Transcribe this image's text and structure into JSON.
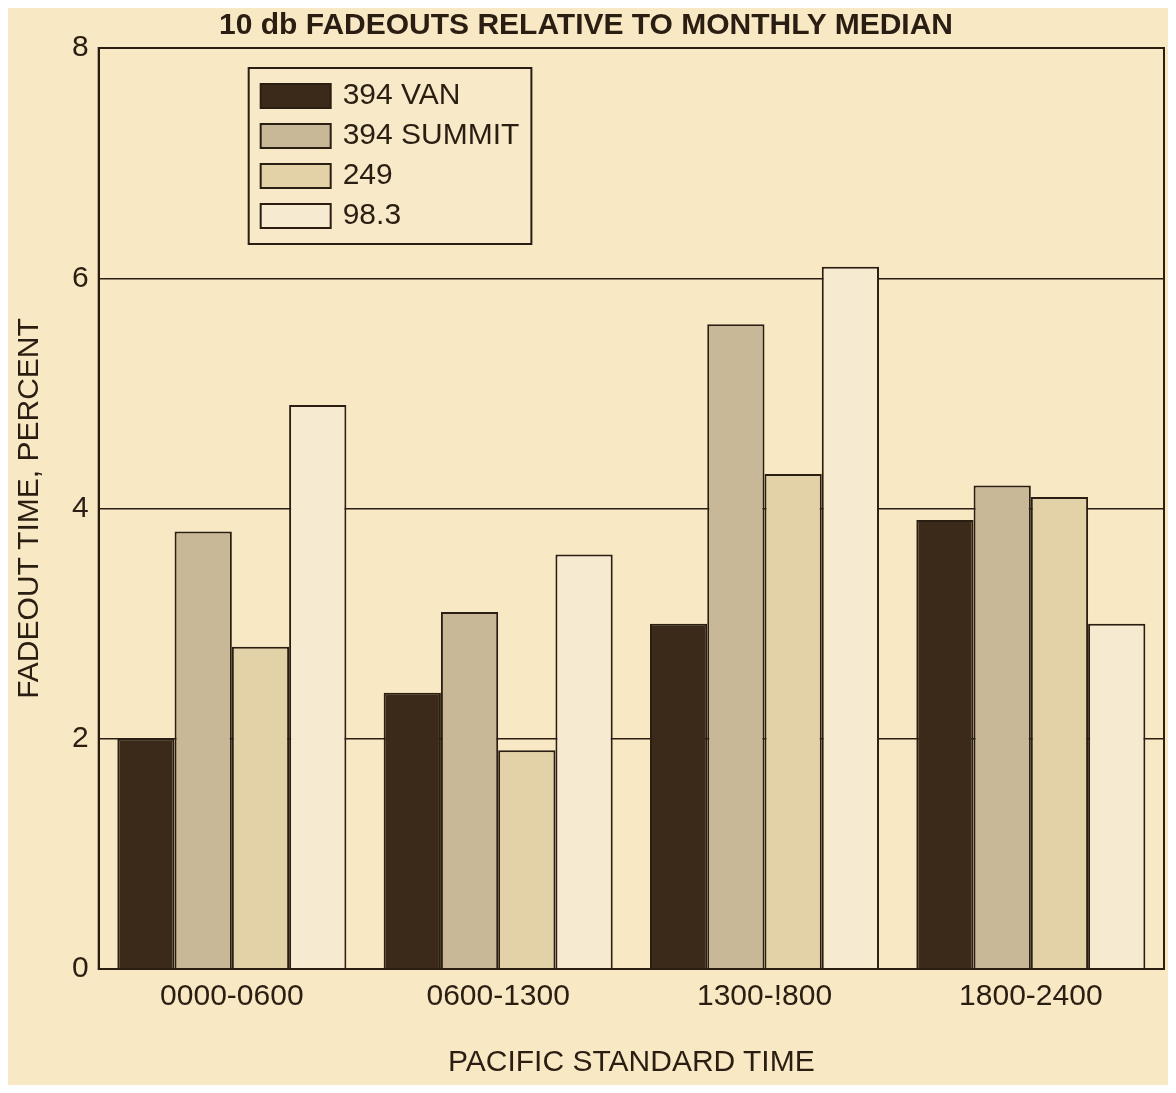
{
  "chart_data": {
    "type": "bar",
    "title": "10 db FADEOUTS RELATIVE TO MONTHLY MEDIAN",
    "xlabel": "PACIFIC STANDARD TIME",
    "ylabel": "FADEOUT TIME, PERCENT",
    "categories": [
      "0000-0600",
      "0600-1300",
      "1300-!800",
      "1800-2400"
    ],
    "series": [
      {
        "name": "394 VAN",
        "color": "#3b2a1a",
        "values": [
          2.0,
          2.4,
          3.0,
          3.9
        ]
      },
      {
        "name": "394 SUMMIT",
        "color": "#c9b898",
        "values": [
          3.8,
          3.1,
          5.6,
          4.2
        ]
      },
      {
        "name": "249",
        "color": "#e3d2a8",
        "values": [
          2.8,
          1.9,
          4.3,
          4.1
        ]
      },
      {
        "name": "98.3",
        "color": "#f6ead0",
        "values": [
          4.9,
          3.6,
          6.1,
          3.0
        ]
      }
    ],
    "ylim": [
      0,
      8
    ],
    "yticks": [
      0,
      2,
      4,
      6,
      8
    ],
    "grid": "y",
    "legend": "top left"
  }
}
